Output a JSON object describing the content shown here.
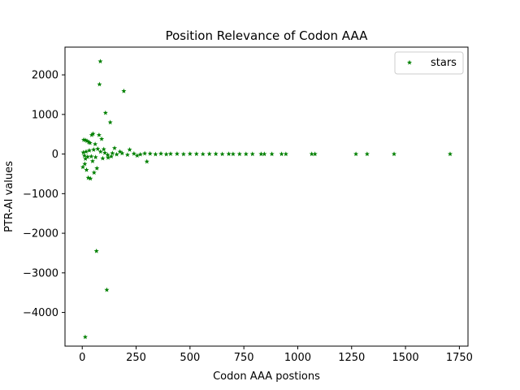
{
  "chart_data": {
    "type": "scatter",
    "title": "Position Relevance of Codon AAA",
    "xlabel": "Codon AAA postions",
    "ylabel": "PTR-AI values",
    "xlim": [
      -80,
      1790
    ],
    "ylim": [
      -4850,
      2700
    ],
    "xticks": [
      0,
      250,
      500,
      750,
      1000,
      1250,
      1500,
      1750
    ],
    "yticks": [
      -4000,
      -3000,
      -2000,
      -1000,
      0,
      1000,
      2000
    ],
    "ytick_labels": [
      "−4000",
      "−3000",
      "−2000",
      "−1000",
      "0",
      "1000",
      "2000"
    ],
    "grid": false,
    "legend_position": "top-right",
    "marker_color": "#008000",
    "series": [
      {
        "name": "stars",
        "points": [
          [
            84,
            2340
          ],
          [
            80,
            1760
          ],
          [
            193,
            1590
          ],
          [
            108,
            1040
          ],
          [
            130,
            800
          ],
          [
            7,
            360
          ],
          [
            15,
            350
          ],
          [
            22,
            330
          ],
          [
            30,
            300
          ],
          [
            36,
            280
          ],
          [
            44,
            480
          ],
          [
            50,
            510
          ],
          [
            78,
            480
          ],
          [
            90,
            380
          ],
          [
            60,
            250
          ],
          [
            3,
            -330
          ],
          [
            12,
            -250
          ],
          [
            20,
            -400
          ],
          [
            28,
            -600
          ],
          [
            38,
            -620
          ],
          [
            55,
            -470
          ],
          [
            68,
            -360
          ],
          [
            48,
            -180
          ],
          [
            15,
            -120
          ],
          [
            66,
            -2450
          ],
          [
            114,
            -3430
          ],
          [
            14,
            -4620
          ],
          [
            300,
            -190
          ],
          [
            255,
            -40
          ],
          [
            220,
            110
          ],
          [
            175,
            60
          ],
          [
            150,
            150
          ],
          [
            135,
            -60
          ],
          [
            120,
            -90
          ],
          [
            100,
            120
          ],
          [
            95,
            -110
          ],
          [
            5,
            40
          ],
          [
            10,
            -40
          ],
          [
            18,
            60
          ],
          [
            25,
            -70
          ],
          [
            33,
            90
          ],
          [
            42,
            -60
          ],
          [
            53,
            110
          ],
          [
            62,
            -80
          ],
          [
            72,
            130
          ],
          [
            85,
            60
          ],
          [
            105,
            30
          ],
          [
            118,
            -20
          ],
          [
            140,
            20
          ],
          [
            160,
            -10
          ],
          [
            185,
            20
          ],
          [
            210,
            -20
          ],
          [
            240,
            10
          ],
          [
            270,
            -10
          ],
          [
            290,
            15
          ],
          [
            315,
            10
          ],
          [
            340,
            -5
          ],
          [
            365,
            10
          ],
          [
            390,
            -5
          ],
          [
            410,
            5
          ],
          [
            440,
            5
          ],
          [
            470,
            -3
          ],
          [
            500,
            5
          ],
          [
            530,
            2
          ],
          [
            560,
            -2
          ],
          [
            590,
            2
          ],
          [
            620,
            2
          ],
          [
            650,
            -2
          ],
          [
            680,
            2
          ],
          [
            700,
            0
          ],
          [
            730,
            0
          ],
          [
            760,
            0
          ],
          [
            790,
            0
          ],
          [
            830,
            0
          ],
          [
            845,
            0
          ],
          [
            880,
            0
          ],
          [
            925,
            0
          ],
          [
            945,
            0
          ],
          [
            1065,
            0
          ],
          [
            1080,
            0
          ],
          [
            1270,
            0
          ],
          [
            1322,
            0
          ],
          [
            1447,
            0
          ],
          [
            1707,
            0
          ]
        ]
      }
    ]
  }
}
